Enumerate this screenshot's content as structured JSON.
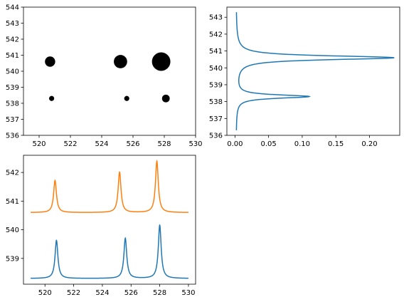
{
  "chart_data": [
    {
      "type": "scatter",
      "title": "",
      "xlabel": "",
      "ylabel": "",
      "xlim": [
        519,
        530
      ],
      "ylim": [
        536,
        544
      ],
      "xticks": [
        520,
        522,
        524,
        526,
        528,
        530
      ],
      "yticks": [
        536,
        537,
        538,
        539,
        540,
        541,
        542,
        543,
        544
      ],
      "color": "#000000",
      "points": [
        {
          "x": 520.7,
          "y": 540.6,
          "size": 2.0
        },
        {
          "x": 525.2,
          "y": 540.6,
          "size": 2.6
        },
        {
          "x": 527.8,
          "y": 540.6,
          "size": 3.6
        },
        {
          "x": 520.8,
          "y": 538.3,
          "size": 1.0
        },
        {
          "x": 525.6,
          "y": 538.3,
          "size": 1.0
        },
        {
          "x": 528.1,
          "y": 538.3,
          "size": 1.5
        }
      ]
    },
    {
      "type": "line",
      "title": "",
      "xlabel": "",
      "ylabel": "",
      "orientation": "vertical-profile",
      "xlim": [
        -0.012,
        0.245
      ],
      "ylim": [
        536,
        543.6
      ],
      "xticks": [
        0.0,
        0.05,
        0.1,
        0.15,
        0.2
      ],
      "xtick_labels": [
        "0.00",
        "0.05",
        "0.10",
        "0.15",
        "0.20"
      ],
      "yticks": [
        536,
        537,
        538,
        539,
        540,
        541,
        542,
        543
      ],
      "color": "#1f77b4",
      "profile": {
        "y_range": [
          536.3,
          543.3
        ],
        "baseline": 0.0015,
        "peaks": [
          {
            "center": 540.6,
            "height": 0.235,
            "width": 0.14
          },
          {
            "center": 538.3,
            "height": 0.108,
            "width": 0.12
          }
        ]
      }
    },
    {
      "type": "line",
      "title": "",
      "xlabel": "",
      "ylabel": "",
      "xlim": [
        518.5,
        530.5
      ],
      "ylim": [
        538.1,
        542.6
      ],
      "xticks": [
        520,
        522,
        524,
        526,
        528,
        530
      ],
      "yticks": [
        539,
        540,
        541,
        542
      ],
      "x_range": [
        519,
        530
      ],
      "series": [
        {
          "color": "#1f77b4",
          "baseline": 538.3,
          "peaks": [
            {
              "center": 520.8,
              "height": 1.33,
              "width": 0.12
            },
            {
              "center": 525.6,
              "height": 1.4,
              "width": 0.12
            },
            {
              "center": 528.0,
              "height": 1.86,
              "width": 0.12
            }
          ]
        },
        {
          "color": "#ff7f0e",
          "baseline": 540.6,
          "peaks": [
            {
              "center": 520.7,
              "height": 1.12,
              "width": 0.12
            },
            {
              "center": 525.2,
              "height": 1.41,
              "width": 0.12
            },
            {
              "center": 527.8,
              "height": 1.79,
              "width": 0.12
            }
          ]
        }
      ]
    }
  ]
}
